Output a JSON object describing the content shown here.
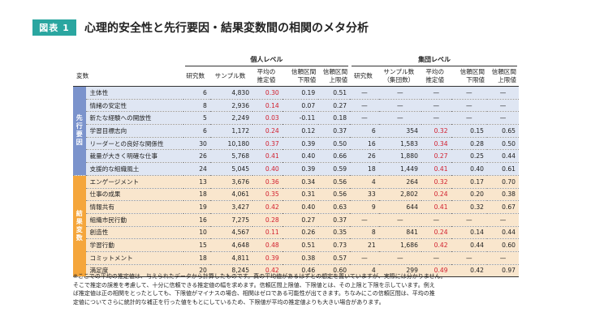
{
  "figure": {
    "badge": "図表 1",
    "title": "心理的安全性と先行要因・結果変数間の相関のメタ分析"
  },
  "table": {
    "variable_header": "変数",
    "individual_level_label": "個人レベル",
    "group_level_label": "集団レベル",
    "individual_columns": {
      "studies": "研究数",
      "sample": "サンプル数",
      "mean_1": "平均の",
      "mean_2": "推定値",
      "lower_1": "信頼区間",
      "lower_2": "下限値",
      "upper_1": "信頼区間",
      "upper_2": "上限値"
    },
    "group_columns": {
      "studies": "研究数",
      "sample_1": "サンプル数",
      "sample_2": "（集団数）",
      "mean_1": "平均の",
      "mean_2": "推定値",
      "lower_1": "信頼区間",
      "lower_2": "下限値",
      "upper_1": "信頼区間",
      "upper_2": "上限値"
    },
    "groups": [
      {
        "label": "先行要因",
        "rows": [
          {
            "name": "主体性",
            "i": [
              "6",
              "4,830",
              "0.30",
              "0.19",
              "0.51"
            ],
            "g": [
              "—",
              "—",
              "—",
              "—",
              "—"
            ]
          },
          {
            "name": "情緒の安定性",
            "i": [
              "8",
              "2,936",
              "0.14",
              "0.07",
              "0.27"
            ],
            "g": [
              "—",
              "—",
              "—",
              "—",
              "—"
            ]
          },
          {
            "name": "新たな経験への開放性",
            "i": [
              "5",
              "2,249",
              "0.03",
              "-0.11",
              "0.18"
            ],
            "g": [
              "—",
              "—",
              "—",
              "—",
              "—"
            ]
          },
          {
            "name": "学習目標志向",
            "i": [
              "6",
              "1,172",
              "0.24",
              "0.12",
              "0.37"
            ],
            "g": [
              "6",
              "354",
              "0.32",
              "0.15",
              "0.65"
            ]
          },
          {
            "name": "リーダーとの良好な関係性",
            "i": [
              "30",
              "10,180",
              "0.37",
              "0.39",
              "0.50"
            ],
            "g": [
              "16",
              "1,583",
              "0.34",
              "0.28",
              "0.50"
            ]
          },
          {
            "name": "裁量が大きく明確な仕事",
            "i": [
              "26",
              "5,768",
              "0.41",
              "0.40",
              "0.66"
            ],
            "g": [
              "26",
              "1,880",
              "0.27",
              "0.25",
              "0.44"
            ]
          },
          {
            "name": "支援的な組織風土",
            "i": [
              "24",
              "5,045",
              "0.40",
              "0.39",
              "0.59"
            ],
            "g": [
              "18",
              "1,449",
              "0.41",
              "0.40",
              "0.61"
            ]
          }
        ]
      },
      {
        "label": "結果変数",
        "rows": [
          {
            "name": "エンゲージメント",
            "i": [
              "13",
              "3,676",
              "0.36",
              "0.34",
              "0.56"
            ],
            "g": [
              "4",
              "264",
              "0.32",
              "0.17",
              "0.70"
            ]
          },
          {
            "name": "仕事の成果",
            "i": [
              "18",
              "4,061",
              "0.35",
              "0.31",
              "0.56"
            ],
            "g": [
              "33",
              "2,802",
              "0.24",
              "0.20",
              "0.38"
            ]
          },
          {
            "name": "情報共有",
            "i": [
              "19",
              "3,427",
              "0.42",
              "0.40",
              "0.63"
            ],
            "g": [
              "9",
              "644",
              "0.41",
              "0.32",
              "0.67"
            ]
          },
          {
            "name": "組織市民行動",
            "i": [
              "16",
              "7,275",
              "0.28",
              "0.27",
              "0.37"
            ],
            "g": [
              "—",
              "—",
              "—",
              "—",
              "—"
            ]
          },
          {
            "name": "創造性",
            "i": [
              "10",
              "4,567",
              "0.11",
              "0.26",
              "0.35"
            ],
            "g": [
              "8",
              "841",
              "0.24",
              "0.14",
              "0.44"
            ]
          },
          {
            "name": "学習行動",
            "i": [
              "15",
              "4,648",
              "0.48",
              "0.51",
              "0.73"
            ],
            "g": [
              "21",
              "1,686",
              "0.42",
              "0.44",
              "0.60"
            ]
          },
          {
            "name": "コミットメント",
            "i": [
              "18",
              "4,811",
              "0.39",
              "0.38",
              "0.57"
            ],
            "g": [
              "—",
              "—",
              "—",
              "—",
              "—"
            ]
          },
          {
            "name": "満足度",
            "i": [
              "20",
              "8,245",
              "0.42",
              "0.46",
              "0.60"
            ],
            "g": [
              "4",
              "299",
              "0.49",
              "0.42",
              "0.97"
            ]
          }
        ]
      }
    ]
  },
  "note": [
    "※ここでの平均の推定値は、与えられたデータから計算したものです。真の平均値があるはずとの想定を置いていますが、実際には分かりません。",
    "そこで推定の誤差を考慮して、十分に信頼できる推定値の幅を求めます。信頼区間上限値、下限値とは、その上限と下限を示しています。例え",
    "ば推定値は正の相関をとったとしても、下限値がマイナスの場合、相関はゼロである可能性が出てきます。ちなみにこの信頼区間は、平均の推",
    "定値についてさらに統計的な補正を行った値をもとにしているため、下限値が平均の推定値よりも大きい場合があります。"
  ],
  "colors": {
    "badge": "#2aa6a0",
    "antecedent_band": "#7b93cc",
    "antecedent_row": "#dfe6f3",
    "outcome_band": "#f5a63b",
    "outcome_row": "#f9e6cd",
    "highlight_text": "#d2202f"
  }
}
